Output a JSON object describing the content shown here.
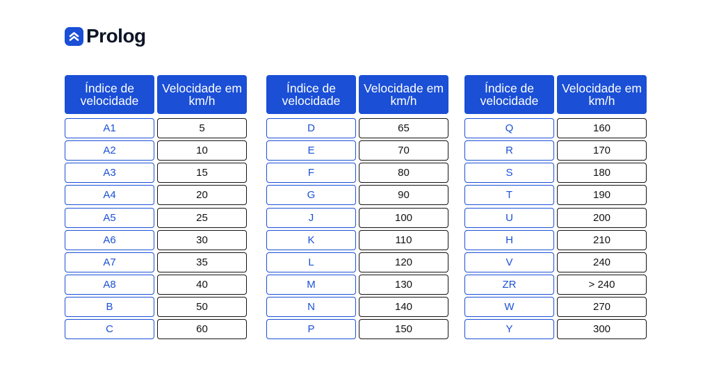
{
  "brand": {
    "name": "Prolog",
    "icon": "chevrons-up-icon",
    "color": "#1a4fd6"
  },
  "tables": [
    {
      "header_index": "Índice de velocidade",
      "header_speed": "Velocidade em km/h",
      "rows": [
        {
          "index": "A1",
          "speed": "5"
        },
        {
          "index": "A2",
          "speed": "10"
        },
        {
          "index": "A3",
          "speed": "15"
        },
        {
          "index": "A4",
          "speed": "20"
        },
        {
          "index": "A5",
          "speed": "25"
        },
        {
          "index": "A6",
          "speed": "30"
        },
        {
          "index": "A7",
          "speed": "35"
        },
        {
          "index": "A8",
          "speed": "40"
        },
        {
          "index": "B",
          "speed": "50"
        },
        {
          "index": "C",
          "speed": "60"
        }
      ]
    },
    {
      "header_index": "Índice de velocidade",
      "header_speed": "Velocidade em km/h",
      "rows": [
        {
          "index": "D",
          "speed": "65"
        },
        {
          "index": "E",
          "speed": "70"
        },
        {
          "index": "F",
          "speed": "80"
        },
        {
          "index": "G",
          "speed": "90"
        },
        {
          "index": "J",
          "speed": "100"
        },
        {
          "index": "K",
          "speed": "110"
        },
        {
          "index": "L",
          "speed": "120"
        },
        {
          "index": "M",
          "speed": "130"
        },
        {
          "index": "N",
          "speed": "140"
        },
        {
          "index": "P",
          "speed": "150"
        }
      ]
    },
    {
      "header_index": "Índice de velocidade",
      "header_speed": "Velocidade em km/h",
      "rows": [
        {
          "index": "Q",
          "speed": "160"
        },
        {
          "index": "R",
          "speed": "170"
        },
        {
          "index": "S",
          "speed": "180"
        },
        {
          "index": "T",
          "speed": "190"
        },
        {
          "index": "U",
          "speed": "200"
        },
        {
          "index": "H",
          "speed": "210"
        },
        {
          "index": "V",
          "speed": "240"
        },
        {
          "index": "ZR",
          "speed": "> 240"
        },
        {
          "index": "W",
          "speed": "270"
        },
        {
          "index": "Y",
          "speed": "300"
        }
      ]
    }
  ]
}
